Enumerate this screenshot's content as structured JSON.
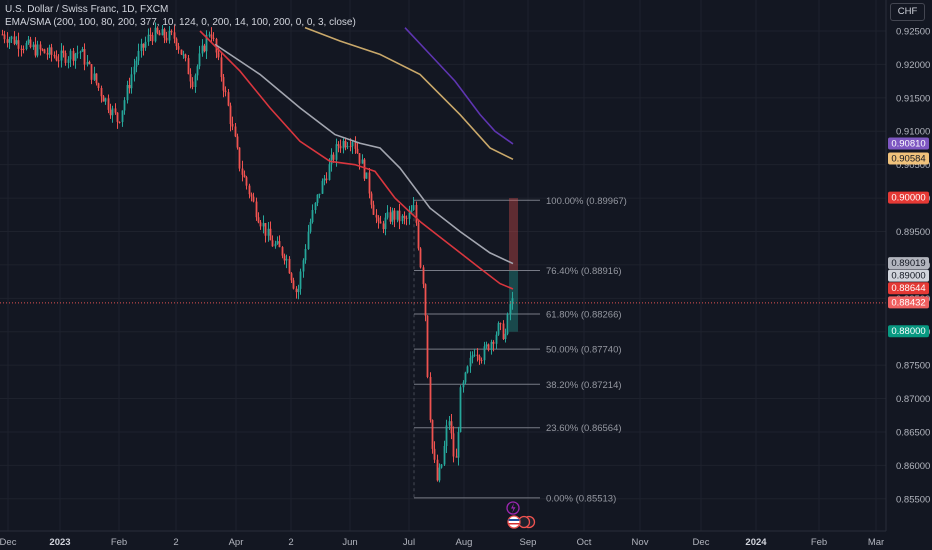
{
  "legend": {
    "symbol": "U.S. Dollar / Swiss Franc, 1D, FXCM",
    "indicator": "EMA/SMA (200, 100, 80, 200, 377, 10, 124, 0, 200, 14, 100, 200, 0, 0, 3, close)"
  },
  "currency": "CHF",
  "colors": {
    "up": "#26a69a",
    "down": "#ef5350",
    "ema_red": "#d9363e",
    "ema_gray": "#a3a6b0",
    "sma_yellow": "#c9a86a",
    "sma_purple": "#5e35b1",
    "fib_line": "#787b86",
    "price_line": "#e05252"
  },
  "chart_data": {
    "type": "candlestick",
    "symbol": "USDCHF",
    "timeframe": "1D",
    "y_ticks": [
      "0.92500",
      "0.92000",
      "0.91500",
      "0.91000",
      "0.90500",
      "0.90000",
      "0.89500",
      "0.89000",
      "0.88500",
      "0.88000",
      "0.87500",
      "0.87000",
      "0.86500",
      "0.86000",
      "0.85500"
    ],
    "x_ticks": [
      {
        "label": "Dec",
        "bold": false
      },
      {
        "label": "2023",
        "bold": true
      },
      {
        "label": "Feb",
        "bold": false
      },
      {
        "label": "2",
        "bold": false
      },
      {
        "label": "Apr",
        "bold": false
      },
      {
        "label": "2",
        "bold": false
      },
      {
        "label": "Jun",
        "bold": false
      },
      {
        "label": "Jul",
        "bold": false
      },
      {
        "label": "Aug",
        "bold": false
      },
      {
        "label": "Sep",
        "bold": false
      },
      {
        "label": "Oct",
        "bold": false
      },
      {
        "label": "Nov",
        "bold": false
      },
      {
        "label": "Dec",
        "bold": false
      },
      {
        "label": "2024",
        "bold": true
      },
      {
        "label": "Feb",
        "bold": false
      },
      {
        "label": "Mar",
        "bold": false
      }
    ],
    "price_badges": [
      {
        "label": "0.90810",
        "value": 0.9081,
        "bg": "#7e57c2",
        "fg": "#ffffff"
      },
      {
        "label": "0.90584",
        "value": 0.90584,
        "bg": "#f0c27b",
        "fg": "#131722"
      },
      {
        "label": "0.90000",
        "value": 0.9,
        "bg": "#e53935",
        "fg": "#ffffff"
      },
      {
        "label": "0.89019",
        "value": 0.89019,
        "bg": "#b2b5be",
        "fg": "#131722"
      },
      {
        "label": "0.89000",
        "value": 0.89,
        "bg": "#d1d4dc",
        "fg": "#131722"
      },
      {
        "label": "0.88644",
        "value": 0.88644,
        "bg": "#e53935",
        "fg": "#ffffff"
      },
      {
        "label": "0.88432",
        "value": 0.88432,
        "bg": "#f06060",
        "fg": "#ffffff"
      },
      {
        "label": "0.88000",
        "value": 0.88,
        "bg": "#089981",
        "fg": "#ffffff"
      }
    ],
    "current_price": 0.88432,
    "fibonacci": [
      {
        "label": "100.00% (0.89967)",
        "value": 0.89967
      },
      {
        "label": "76.40% (0.88916)",
        "value": 0.88916
      },
      {
        "label": "61.80% (0.88266)",
        "value": 0.88266
      },
      {
        "label": "50.00% (0.87740)",
        "value": 0.8774
      },
      {
        "label": "38.20% (0.87214)",
        "value": 0.87214
      },
      {
        "label": "23.60% (0.86564)",
        "value": 0.86564
      },
      {
        "label": "0.00% (0.85513)",
        "value": 0.85513
      }
    ],
    "position_box": {
      "entry": 0.88916,
      "stop": 0.9,
      "target": 0.88
    }
  }
}
